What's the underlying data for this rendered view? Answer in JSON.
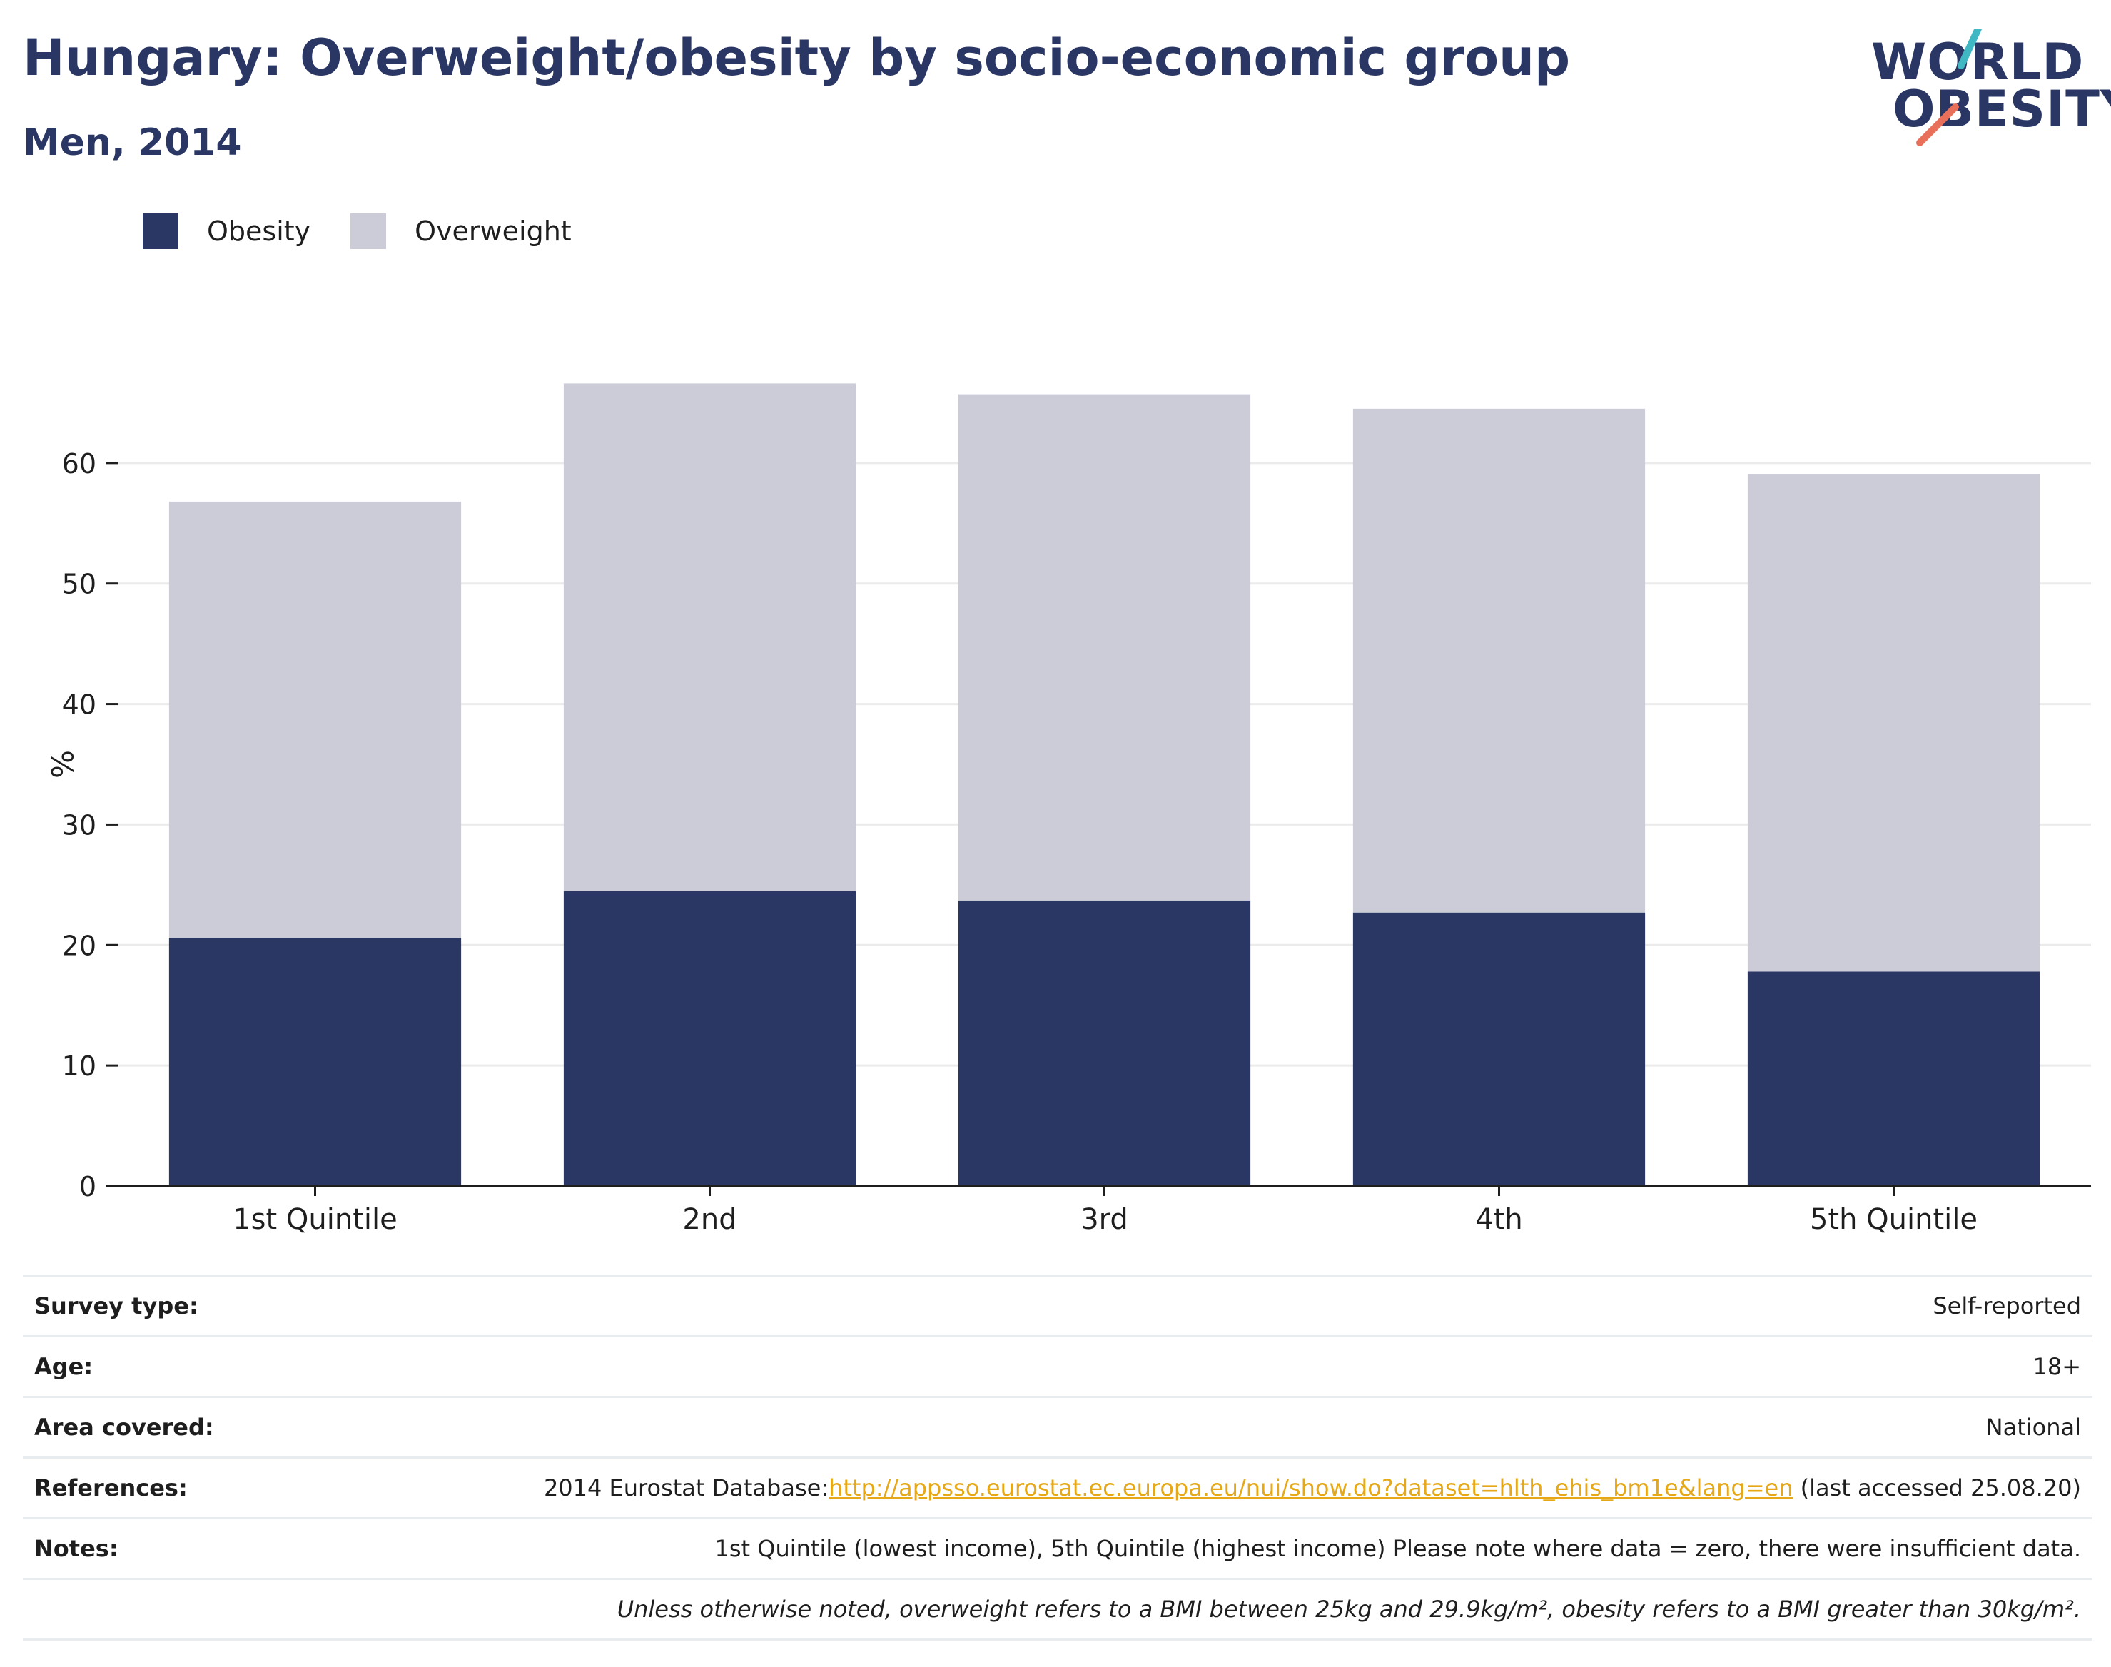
{
  "header": {
    "title": "Hungary: Overweight/obesity by socio-economic group",
    "subtitle": "Men, 2014"
  },
  "logo": {
    "line1": "WORLD",
    "line2": "OBESITY",
    "accent_colors": [
      "#3fb8c4",
      "#e8705a"
    ]
  },
  "colors": {
    "obesity": "#2a3663",
    "overweight": "#cbccd8",
    "grid": "#ebebeb",
    "axis": "#1e1e1e",
    "link": "#e6a817"
  },
  "chart_data": {
    "type": "bar",
    "stacked": true,
    "categories": [
      "1st Quintile",
      "2nd",
      "3rd",
      "4th",
      "5th Quintile"
    ],
    "series": [
      {
        "name": "Obesity",
        "values": [
          20.6,
          24.5,
          23.7,
          22.7,
          17.8
        ]
      },
      {
        "name": "Overweight",
        "values": [
          36.2,
          42.1,
          42.0,
          41.8,
          41.3
        ]
      }
    ],
    "ylabel": "%",
    "ylim": [
      0,
      70
    ],
    "yticks": [
      0,
      10,
      20,
      30,
      40,
      50,
      60
    ],
    "grid": true,
    "legend": "top-left"
  },
  "meta": {
    "rows": [
      {
        "key": "Survey type:",
        "value": "Self-reported"
      },
      {
        "key": "Age:",
        "value": "18+"
      },
      {
        "key": "Area covered:",
        "value": "National"
      },
      {
        "key": "References:",
        "value_prefix": "2014 Eurostat Database:",
        "link": "http://appsso.eurostat.ec.europa.eu/nui/show.do?dataset=hlth_ehis_bm1e&lang=en",
        "value_suffix": " (last accessed 25.08.20)"
      },
      {
        "key": "Notes:",
        "value": "1st Quintile (lowest income), 5th Quintile (highest income) Please note where data = zero, there were insufficient data."
      },
      {
        "key": "",
        "value": "Unless otherwise noted, overweight refers to a BMI between 25kg and 29.9kg/m², obesity refers to a BMI greater than 30kg/m²."
      }
    ]
  }
}
